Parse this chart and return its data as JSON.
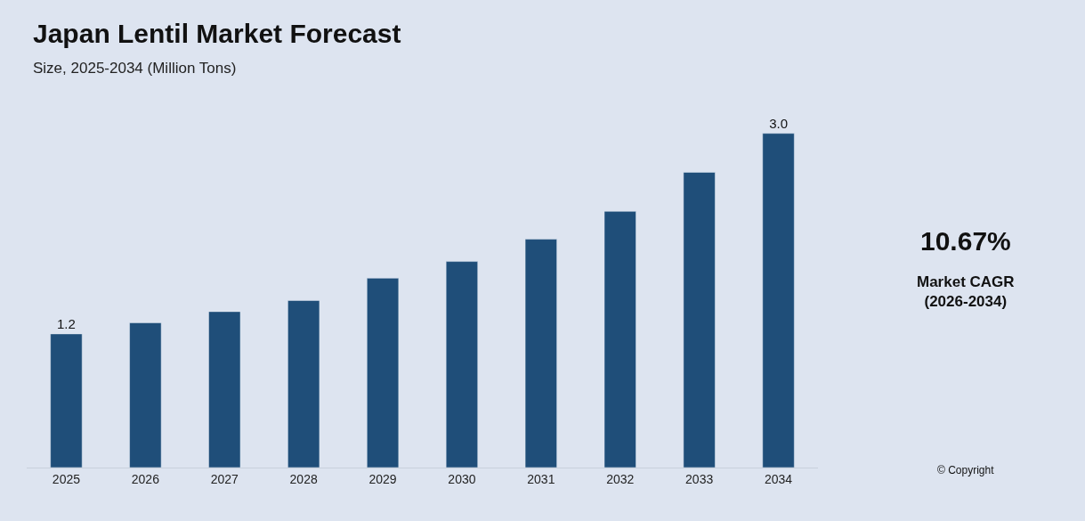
{
  "chart_data": {
    "type": "bar",
    "title": "Japan Lentil Market Forecast",
    "subtitle": "Size, 2025-2034 (Million Tons)",
    "categories": [
      "2025",
      "2026",
      "2027",
      "2028",
      "2029",
      "2030",
      "2031",
      "2032",
      "2033",
      "2034"
    ],
    "values": [
      1.2,
      1.3,
      1.4,
      1.5,
      1.7,
      1.85,
      2.05,
      2.3,
      2.65,
      3.0
    ],
    "value_labels": [
      "1.2",
      null,
      null,
      null,
      null,
      null,
      null,
      null,
      null,
      "3.0"
    ],
    "color": "#1f4e79",
    "tick_labels": "x",
    "grid": false,
    "legend": false,
    "annotations": [
      "10.67%",
      "Market CAGR\n(2026-2034)",
      "© Copyright"
    ]
  }
}
